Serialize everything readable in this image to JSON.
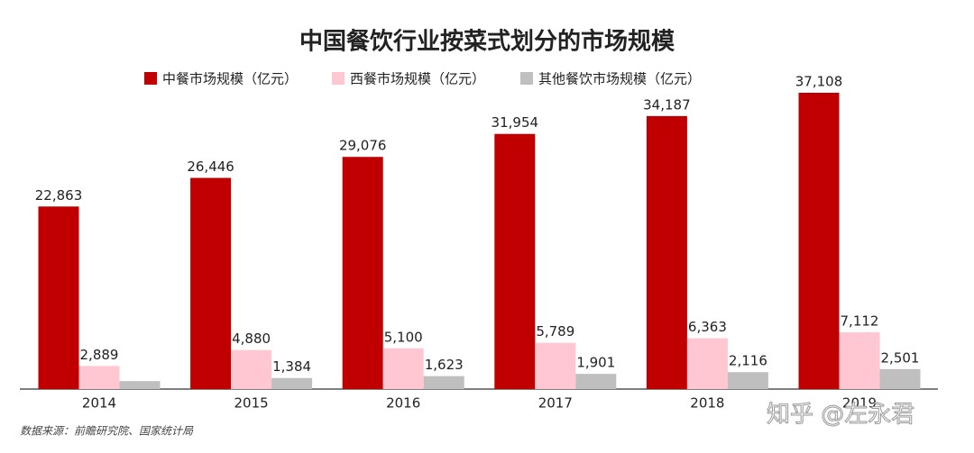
{
  "chart_data": {
    "type": "bar",
    "title": "中国餐饮行业按菜式划分的市场规模",
    "categories": [
      "2014",
      "2015",
      "2016",
      "2017",
      "2018",
      "2019"
    ],
    "series": [
      {
        "name": "中餐市场规模（亿元）",
        "color": "#c00000",
        "values": [
          22863,
          26446,
          29076,
          31954,
          34187,
          37108
        ],
        "value_labels": [
          "22,863",
          "26,446",
          "29,076",
          "31,954",
          "34,187",
          "37,108"
        ]
      },
      {
        "name": "西餐市场规模（亿元）",
        "color": "#ffc7d1",
        "values": [
          2889,
          4880,
          5100,
          5789,
          6363,
          7112
        ],
        "value_labels": [
          "2,889",
          "4,880",
          "5,100",
          "5,789",
          "6,363",
          "7,112"
        ]
      },
      {
        "name": "其他餐饮市场规模（亿元）",
        "color": "#bfbfbf",
        "values": [
          1000,
          1384,
          1623,
          1901,
          2116,
          2501
        ],
        "value_labels": [
          null,
          "1,384",
          "1,623",
          "1,901",
          "2,116",
          "2,501"
        ]
      }
    ],
    "source": "数据来源：前瞻研究院、国家统计局",
    "watermark": "知乎 @左永君"
  }
}
